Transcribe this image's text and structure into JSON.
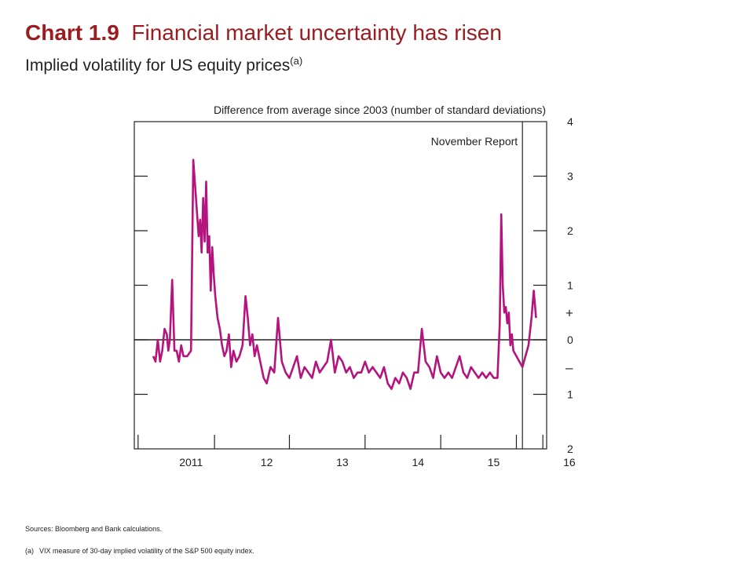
{
  "header": {
    "chart_number": "Chart 1.9",
    "title": "Financial market uncertainty has risen",
    "subtitle": "Implied volatility for US equity prices",
    "subtitle_note_marker": "(a)"
  },
  "footer": {
    "sources": "Sources:  Bloomberg and Bank calculations.",
    "note_marker": "(a)",
    "note": "VIX measure of 30-day implied volatility of the S&P 500 equity index."
  },
  "colors": {
    "title": "#9b1b1f",
    "series": "#b5137d",
    "axis": "#222222"
  },
  "chart_data": {
    "type": "line",
    "ylabel": "Difference from average since 2003 (number of standard deviations)",
    "annotation": "November Report",
    "annotation_x": 2015.88,
    "ylim": [
      -2,
      4
    ],
    "xlim": [
      2010.75,
      2016.2
    ],
    "y_ticks": [
      4,
      3,
      2,
      1,
      0,
      -1,
      -2
    ],
    "y_tick_labels": [
      "4",
      "3",
      "2",
      "1",
      "0",
      "1",
      "2"
    ],
    "sign_labels": [
      "+",
      "–"
    ],
    "x_ticks": [
      2011,
      2012,
      2013,
      2014,
      2015,
      2016
    ],
    "x_tick_labels": [
      "2011",
      "12",
      "13",
      "14",
      "15",
      "16"
    ],
    "grid": false,
    "series": [
      {
        "x": [
          2011.0,
          2011.03,
          2011.06,
          2011.09,
          2011.12,
          2011.15,
          2011.18,
          2011.2,
          2011.22,
          2011.25,
          2011.28,
          2011.31,
          2011.34,
          2011.37,
          2011.4,
          2011.45,
          2011.5,
          2011.53,
          2011.57,
          2011.6,
          2011.62,
          2011.64,
          2011.66,
          2011.68,
          2011.7,
          2011.72,
          2011.74,
          2011.76,
          2011.78,
          2011.8,
          2011.82,
          2011.85,
          2011.88,
          2011.91,
          2011.94,
          2011.97,
          2012.0,
          2012.03,
          2012.06,
          2012.1,
          2012.14,
          2012.18,
          2012.22,
          2012.25,
          2012.28,
          2012.31,
          2012.34,
          2012.37,
          2012.4,
          2012.43,
          2012.46,
          2012.5,
          2012.55,
          2012.6,
          2012.65,
          2012.7,
          2012.75,
          2012.8,
          2012.85,
          2012.9,
          2012.95,
          2013.0,
          2013.05,
          2013.1,
          2013.15,
          2013.2,
          2013.25,
          2013.3,
          2013.35,
          2013.4,
          2013.45,
          2013.5,
          2013.55,
          2013.6,
          2013.65,
          2013.7,
          2013.75,
          2013.8,
          2013.85,
          2013.9,
          2013.95,
          2014.0,
          2014.05,
          2014.1,
          2014.15,
          2014.2,
          2014.25,
          2014.3,
          2014.35,
          2014.4,
          2014.45,
          2014.5,
          2014.55,
          2014.6,
          2014.65,
          2014.7,
          2014.75,
          2014.8,
          2014.85,
          2014.9,
          2014.95,
          2015.0,
          2015.05,
          2015.1,
          2015.15,
          2015.2,
          2015.25,
          2015.3,
          2015.35,
          2015.4,
          2015.45,
          2015.5,
          2015.55,
          2015.58,
          2015.6,
          2015.62,
          2015.64,
          2015.66,
          2015.68,
          2015.7,
          2015.72,
          2015.74,
          2015.76,
          2015.8,
          2015.84,
          2015.88,
          2015.92,
          2015.96,
          2016.0,
          2016.03,
          2016.06
        ],
        "y": [
          -0.3,
          -0.4,
          0.0,
          -0.4,
          -0.2,
          0.2,
          0.1,
          -0.2,
          0.0,
          1.1,
          -0.2,
          -0.2,
          -0.4,
          -0.1,
          -0.3,
          -0.3,
          -0.2,
          3.3,
          2.5,
          1.9,
          2.2,
          1.6,
          2.6,
          1.8,
          2.9,
          1.6,
          1.9,
          0.9,
          1.7,
          1.2,
          0.8,
          0.4,
          0.2,
          -0.1,
          -0.3,
          -0.2,
          0.1,
          -0.5,
          -0.2,
          -0.4,
          -0.3,
          -0.1,
          0.8,
          0.4,
          -0.1,
          0.1,
          -0.3,
          -0.1,
          -0.3,
          -0.5,
          -0.7,
          -0.8,
          -0.5,
          -0.6,
          0.4,
          -0.4,
          -0.6,
          -0.7,
          -0.5,
          -0.3,
          -0.7,
          -0.5,
          -0.6,
          -0.7,
          -0.4,
          -0.6,
          -0.5,
          -0.4,
          0.0,
          -0.6,
          -0.3,
          -0.4,
          -0.6,
          -0.5,
          -0.7,
          -0.6,
          -0.6,
          -0.4,
          -0.6,
          -0.5,
          -0.6,
          -0.7,
          -0.5,
          -0.8,
          -0.9,
          -0.7,
          -0.8,
          -0.6,
          -0.7,
          -0.9,
          -0.6,
          -0.6,
          0.2,
          -0.4,
          -0.5,
          -0.7,
          -0.3,
          -0.6,
          -0.7,
          -0.6,
          -0.7,
          -0.5,
          -0.3,
          -0.6,
          -0.7,
          -0.5,
          -0.6,
          -0.7,
          -0.6,
          -0.7,
          -0.6,
          -0.7,
          -0.7,
          0.3,
          2.3,
          1.0,
          0.5,
          0.6,
          0.3,
          0.5,
          -0.1,
          0.1,
          -0.2,
          -0.3,
          -0.4,
          -0.5,
          -0.3,
          -0.1,
          0.4,
          0.9,
          0.4
        ]
      }
    ]
  }
}
